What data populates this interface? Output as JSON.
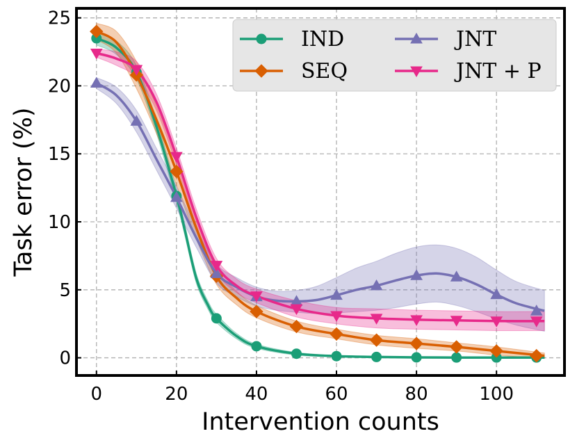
{
  "chart_data": {
    "type": "line",
    "title": "",
    "xlabel": "Intervention counts",
    "ylabel": "Task error (%)",
    "xlim": [
      -5,
      117
    ],
    "ylim": [
      -1.3,
      25.7
    ],
    "xticks": [
      0,
      20,
      40,
      60,
      80,
      100
    ],
    "yticks": [
      0,
      5,
      10,
      15,
      20,
      25
    ],
    "grid": true,
    "legend_position": "top-right",
    "series": [
      {
        "name": "IND",
        "color": "#1b9e77",
        "marker": "circle",
        "x": [
          0,
          10,
          20,
          30,
          40,
          50,
          60,
          70,
          80,
          90,
          100,
          110
        ],
        "values": [
          23.5,
          21.0,
          11.9,
          2.9,
          0.85,
          0.3,
          0.12,
          0.06,
          0.03,
          0.02,
          0.02,
          0.02
        ],
        "curve_x": [
          0,
          5,
          10,
          15,
          20,
          22,
          25,
          28,
          30,
          35,
          40,
          50,
          60,
          70,
          80,
          90,
          100,
          112
        ],
        "curve_y": [
          23.5,
          22.8,
          21.0,
          17.0,
          11.9,
          9.5,
          5.8,
          3.8,
          2.9,
          1.6,
          0.85,
          0.3,
          0.12,
          0.06,
          0.03,
          0.02,
          0.02,
          0.02
        ],
        "band": [
          0.5,
          0.5,
          0.5,
          0.5,
          0.5,
          0.4,
          0.35,
          0.3,
          0.3,
          0.2,
          0.15,
          0.1,
          0.05,
          0.05,
          0.05,
          0.05,
          0.05,
          0.05
        ]
      },
      {
        "name": "SEQ",
        "color": "#d95f02",
        "marker": "diamond",
        "x": [
          0,
          10,
          20,
          30,
          40,
          50,
          60,
          70,
          80,
          90,
          100,
          110
        ],
        "values": [
          24.0,
          20.8,
          13.7,
          6.0,
          3.4,
          2.3,
          1.75,
          1.3,
          1.05,
          0.8,
          0.5,
          0.15
        ],
        "curve_x": [
          0,
          5,
          10,
          15,
          20,
          25,
          30,
          35,
          40,
          50,
          60,
          70,
          80,
          90,
          100,
          112
        ],
        "curve_y": [
          24.0,
          23.2,
          20.8,
          17.5,
          13.7,
          9.5,
          6.0,
          4.4,
          3.4,
          2.3,
          1.75,
          1.3,
          1.05,
          0.8,
          0.5,
          0.15
        ],
        "band": [
          0.6,
          0.8,
          1.0,
          1.0,
          1.0,
          0.8,
          0.6,
          0.5,
          0.45,
          0.4,
          0.35,
          0.35,
          0.35,
          0.3,
          0.3,
          0.2
        ]
      },
      {
        "name": "JNT",
        "color": "#7570b3",
        "marker": "triangle-up",
        "x": [
          0,
          10,
          20,
          30,
          40,
          50,
          60,
          70,
          80,
          90,
          100,
          110
        ],
        "values": [
          20.2,
          17.4,
          11.8,
          6.2,
          4.5,
          4.15,
          4.6,
          5.3,
          6.05,
          5.95,
          4.65,
          3.45
        ],
        "curve_x": [
          0,
          5,
          10,
          15,
          20,
          25,
          30,
          35,
          40,
          45,
          50,
          55,
          60,
          65,
          70,
          75,
          80,
          85,
          90,
          95,
          100,
          105,
          112
        ],
        "curve_y": [
          20.2,
          19.3,
          17.4,
          14.6,
          11.8,
          8.8,
          6.2,
          5.2,
          4.5,
          4.2,
          4.15,
          4.25,
          4.6,
          5.0,
          5.3,
          5.7,
          6.05,
          6.2,
          5.95,
          5.4,
          4.65,
          4.0,
          3.45
        ],
        "band": [
          0.4,
          0.6,
          0.8,
          0.8,
          0.8,
          0.7,
          0.7,
          0.7,
          0.7,
          0.7,
          0.8,
          1.0,
          1.3,
          1.6,
          1.8,
          2.0,
          2.1,
          2.1,
          2.1,
          2.0,
          1.8,
          1.6,
          1.5
        ]
      },
      {
        "name": "JNT + P",
        "color": "#e7298a",
        "marker": "triangle-down",
        "x": [
          0,
          10,
          20,
          30,
          40,
          50,
          60,
          70,
          80,
          90,
          100,
          110
        ],
        "values": [
          22.4,
          21.2,
          14.8,
          6.8,
          4.55,
          3.6,
          3.1,
          2.9,
          2.8,
          2.75,
          2.7,
          2.7
        ],
        "curve_x": [
          0,
          5,
          10,
          15,
          20,
          25,
          30,
          35,
          40,
          50,
          60,
          70,
          80,
          90,
          100,
          112
        ],
        "curve_y": [
          22.4,
          22.0,
          21.2,
          18.8,
          14.8,
          10.3,
          6.8,
          5.3,
          4.55,
          3.6,
          3.1,
          2.9,
          2.8,
          2.75,
          2.7,
          2.7
        ],
        "band": [
          0.3,
          0.5,
          0.6,
          0.6,
          0.6,
          0.6,
          0.5,
          0.5,
          0.5,
          0.6,
          0.6,
          0.7,
          0.7,
          0.7,
          0.7,
          0.7
        ]
      }
    ]
  }
}
